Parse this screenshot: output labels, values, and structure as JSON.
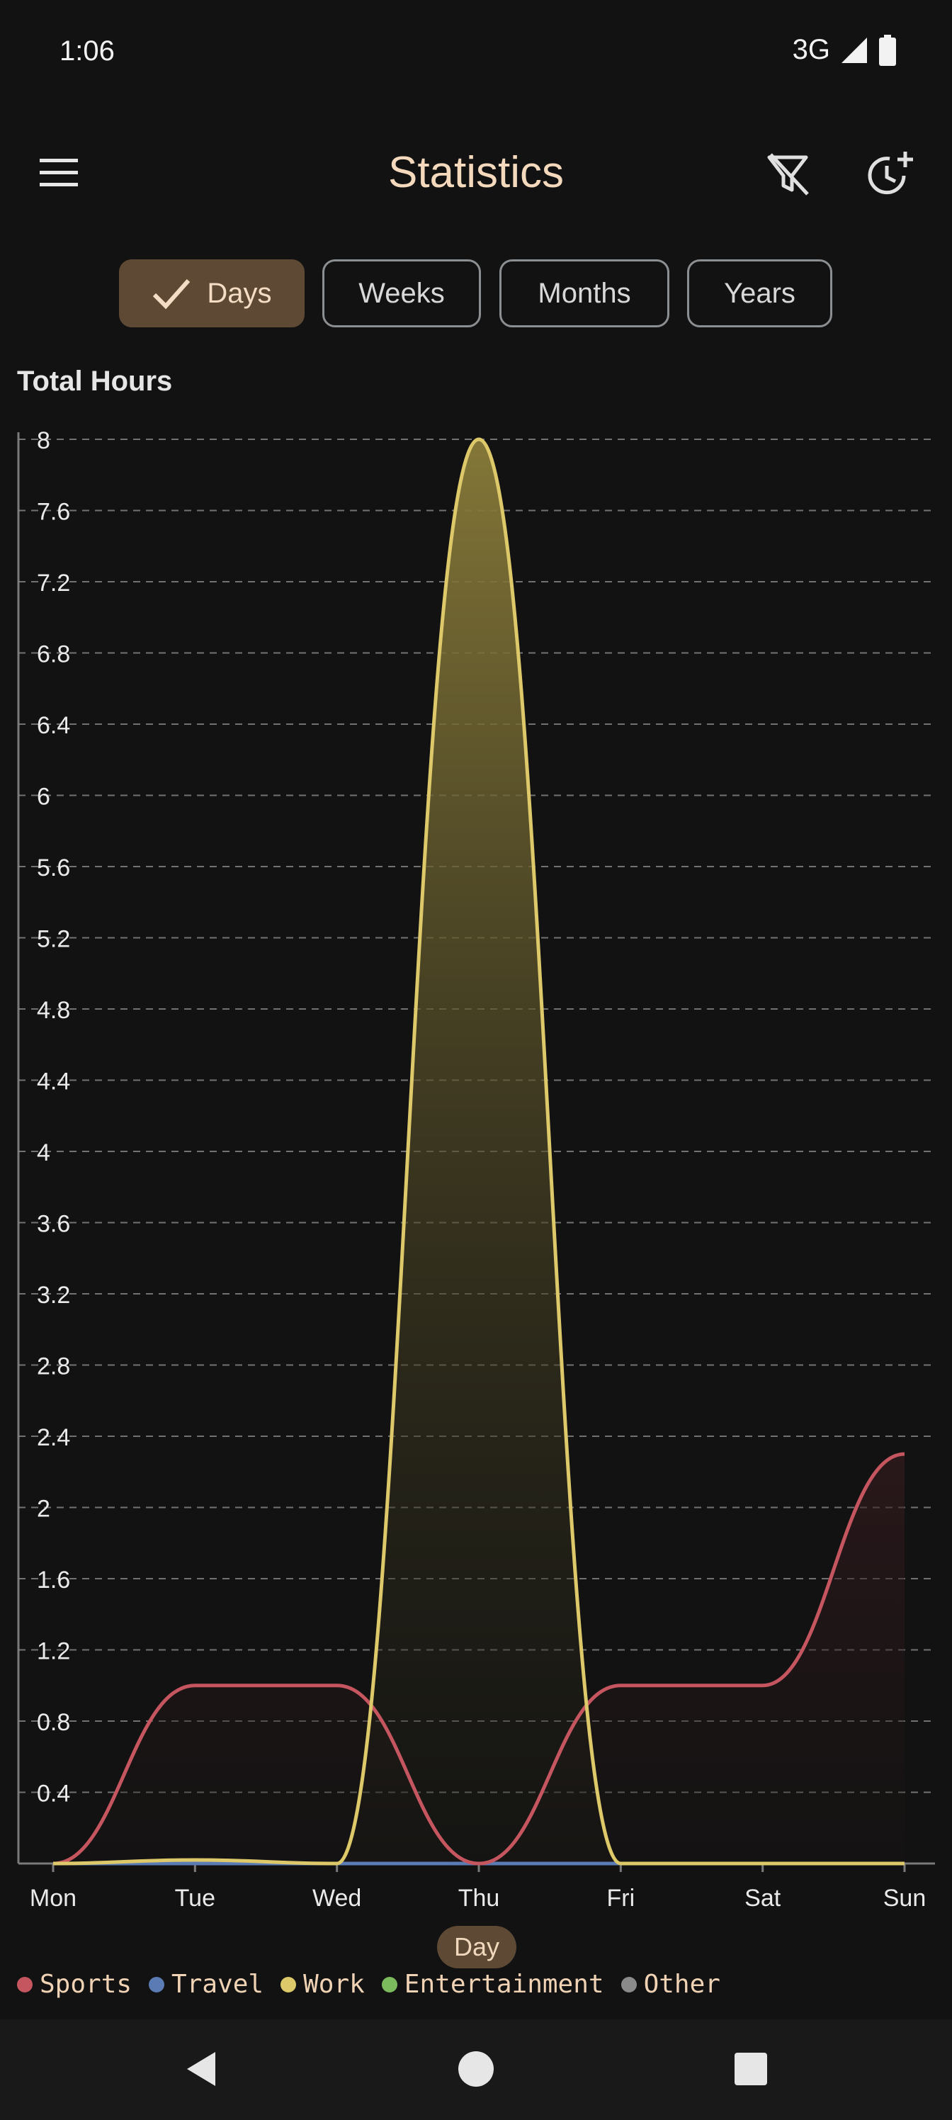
{
  "status_bar": {
    "time": "1:06",
    "network": "3G"
  },
  "app_bar": {
    "title": "Statistics",
    "menu_icon": "hamburger-menu-icon",
    "filter_icon": "filter-off-icon",
    "add_time_icon": "clock-plus-icon"
  },
  "tabs": [
    {
      "label": "Days",
      "selected": true
    },
    {
      "label": "Weeks",
      "selected": false
    },
    {
      "label": "Months",
      "selected": false
    },
    {
      "label": "Years",
      "selected": false
    }
  ],
  "chart_data": {
    "type": "area",
    "ylabel": "Total Hours",
    "xlabel": "Day",
    "categories": [
      "Mon",
      "Tue",
      "Wed",
      "Thu",
      "Fri",
      "Sat",
      "Sun"
    ],
    "ylim": [
      0,
      8
    ],
    "yticks": [
      "0.4",
      "0.8",
      "1.2",
      "1.6",
      "2",
      "2.4",
      "2.8",
      "3.2",
      "3.6",
      "4",
      "4.4",
      "4.8",
      "5.2",
      "5.6",
      "6",
      "6.4",
      "6.8",
      "7.2",
      "7.6",
      "8"
    ],
    "grid": true,
    "legend_position": "bottom",
    "series": [
      {
        "name": "Sports",
        "color": "#c5565f",
        "values": [
          0,
          1.0,
          1.0,
          0,
          1.0,
          1.0,
          2.3
        ]
      },
      {
        "name": "Travel",
        "color": "#5b7bb5",
        "values": [
          0,
          0,
          0,
          0,
          0,
          0,
          0
        ]
      },
      {
        "name": "Work",
        "color": "#ddc96a",
        "values": [
          0,
          0.02,
          0,
          8.0,
          0,
          0,
          0
        ]
      },
      {
        "name": "Entertainment",
        "color": "#7cba5e",
        "values": [
          0,
          0,
          0,
          0,
          0,
          0,
          0
        ]
      },
      {
        "name": "Other",
        "color": "#8a8a8a",
        "values": [
          0,
          0,
          0,
          0,
          0,
          0,
          0
        ]
      }
    ]
  }
}
